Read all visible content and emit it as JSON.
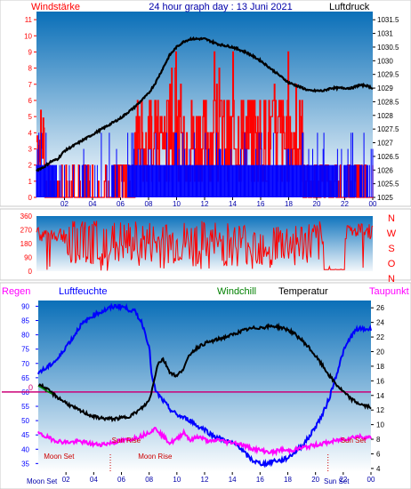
{
  "colors": {
    "bg_top": "#0a6fb8",
    "bg_bottom": "#ffffff",
    "wind": "#ff0000",
    "gust": "#0000ff",
    "pressure": "#000000",
    "humidity": "#0000ff",
    "temperature": "#000000",
    "dewpoint": "#ff00ff",
    "windchill": "#008000",
    "rain": "#ff00ff",
    "zero_line": "#cc0077",
    "moon": "#cc0000"
  },
  "chart_data": [
    {
      "id": "wind_pressure",
      "type": "line",
      "title": "24 hour graph day : 13 Juni 2021",
      "left_label": "Windstärke",
      "right_label": "Luftdruck",
      "y_left_ticks": [
        "0",
        "1",
        "2",
        "3",
        "4",
        "5",
        "6",
        "7",
        "8",
        "9",
        "10",
        "11"
      ],
      "y_right_ticks": [
        "1025",
        "1025.5",
        "1026",
        "1026.5",
        "1027",
        "1027.5",
        "1028",
        "1028.5",
        "1029",
        "1029.5",
        "1030",
        "1030.5",
        "1031",
        "1031.5"
      ],
      "x_ticks": [
        "02",
        "04",
        "06",
        "08",
        "10",
        "12",
        "14",
        "16",
        "18",
        "20",
        "22",
        "00"
      ],
      "ylim_left": [
        0,
        11.5
      ],
      "ylim_right": [
        1025,
        1031.8
      ],
      "pressure": {
        "x": [
          0,
          0.5,
          1,
          1.5,
          2,
          3,
          4,
          5,
          6,
          7,
          8,
          8.5,
          9,
          9.5,
          10,
          10.5,
          11,
          11.5,
          12,
          12.5,
          13,
          14,
          15,
          16,
          16.5,
          17,
          17.5,
          18,
          18.5,
          19,
          19.5,
          20,
          20.5,
          21,
          21.5,
          22,
          22.5,
          23,
          23.5,
          24
        ],
        "y": [
          1026.0,
          1026.1,
          1026.3,
          1026.4,
          1026.7,
          1027.0,
          1027.3,
          1027.6,
          1027.9,
          1028.3,
          1028.8,
          1029.2,
          1029.7,
          1030.2,
          1030.5,
          1030.7,
          1030.8,
          1030.8,
          1030.8,
          1030.7,
          1030.6,
          1030.5,
          1030.3,
          1030.0,
          1029.8,
          1029.6,
          1029.4,
          1029.2,
          1029.1,
          1029.0,
          1028.9,
          1028.9,
          1028.9,
          1029.0,
          1029.0,
          1029.0,
          1029.0,
          1029.1,
          1029.1,
          1029.0
        ]
      }
    },
    {
      "id": "wind_direction",
      "type": "line",
      "y_left_ticks": [
        "0",
        "90",
        "180",
        "270",
        "360"
      ],
      "direction_labels": [
        "N",
        "W",
        "S",
        "O",
        "N"
      ],
      "ylim": [
        0,
        360
      ]
    },
    {
      "id": "humidity_temperature",
      "type": "line",
      "legend": [
        "Regen",
        "Luftfeuchte",
        "Windchill",
        "Temperatur",
        "Taupunkt"
      ],
      "y_left_ticks": [
        "35",
        "40",
        "45",
        "50",
        "55",
        "60",
        "65",
        "70",
        "75",
        "80",
        "85",
        "90"
      ],
      "y_right_ticks": [
        "4",
        "6",
        "8",
        "10",
        "12",
        "14",
        "16",
        "18",
        "20",
        "22",
        "24",
        "26"
      ],
      "zero_label": "0",
      "x_ticks": [
        "02",
        "04",
        "06",
        "08",
        "10",
        "12",
        "14",
        "16",
        "18",
        "20",
        "22",
        "00"
      ],
      "ylim_left": [
        32,
        92
      ],
      "ylim_right": [
        3.5,
        27
      ],
      "humidity": {
        "x": [
          0,
          0.5,
          1,
          1.5,
          2,
          2.5,
          3,
          3.5,
          4,
          4.5,
          5,
          5.5,
          6,
          6.5,
          7,
          7.5,
          8,
          8.2,
          8.5,
          9,
          9.5,
          10,
          10.5,
          11,
          11.5,
          12,
          12.5,
          13,
          13.5,
          14,
          14.5,
          15,
          15.5,
          16,
          16.5,
          17,
          17.5,
          18,
          18.5,
          19,
          19.5,
          20,
          20.5,
          21,
          21.5,
          22,
          22.5,
          23,
          23.5,
          24
        ],
        "y": [
          67,
          68,
          70,
          72,
          76,
          79,
          83,
          85,
          87,
          88,
          89,
          90,
          90,
          89,
          88,
          84,
          76,
          65,
          60,
          57,
          54,
          52,
          51,
          50,
          48,
          47,
          45,
          44,
          43,
          42,
          41,
          38,
          36,
          35,
          35,
          36,
          36,
          37,
          39,
          41,
          44,
          48,
          52,
          58,
          66,
          74,
          79,
          82,
          82,
          82
        ]
      },
      "temperature": {
        "x": [
          0,
          0.5,
          1,
          1.5,
          2,
          2.5,
          3,
          3.5,
          4,
          4.5,
          5,
          5.5,
          6,
          6.5,
          7,
          7.5,
          8,
          8.3,
          8.6,
          9,
          9.5,
          10,
          10.5,
          11,
          11.5,
          12,
          12.5,
          13,
          13.5,
          14,
          14.5,
          15,
          15.5,
          16,
          16.5,
          17,
          17.5,
          18,
          18.5,
          19,
          19.5,
          20,
          20.5,
          21,
          21.5,
          22,
          22.5,
          23,
          23.5,
          24
        ],
        "y": [
          15.6,
          15.0,
          14.3,
          13.6,
          13.0,
          12.4,
          11.9,
          11.5,
          11.1,
          10.9,
          10.8,
          10.8,
          10.9,
          11.1,
          11.6,
          12.3,
          13.3,
          15.5,
          18.3,
          19.0,
          17.2,
          16.6,
          17.8,
          19.8,
          20.6,
          21.1,
          21.4,
          21.7,
          22.0,
          22.3,
          22.7,
          23.0,
          23.2,
          23.3,
          23.4,
          23.5,
          23.3,
          23.0,
          22.4,
          21.6,
          20.6,
          19.4,
          18.1,
          16.7,
          15.5,
          14.5,
          13.6,
          13.0,
          12.6,
          12.4
        ]
      },
      "dewpoint": {
        "x": [
          0,
          0.5,
          1,
          1.5,
          2,
          2.5,
          3,
          3.5,
          4,
          4.5,
          5,
          5.5,
          6,
          6.5,
          7,
          7.5,
          8,
          8.5,
          9,
          9.5,
          10,
          10.5,
          11,
          11.5,
          12,
          12.5,
          13,
          13.5,
          14,
          14.5,
          15,
          15.5,
          16,
          16.5,
          17,
          17.5,
          18,
          18.5,
          19,
          19.5,
          20,
          20.5,
          21,
          21.5,
          22,
          22.5,
          23,
          23.5,
          24
        ],
        "y": [
          8.8,
          8.4,
          8.0,
          7.7,
          7.6,
          7.6,
          7.7,
          7.5,
          7.3,
          7.3,
          7.4,
          7.6,
          7.8,
          7.9,
          8.2,
          8.5,
          9.0,
          9.5,
          8.4,
          7.5,
          8.0,
          9.0,
          7.8,
          8.4,
          8.0,
          7.6,
          8.0,
          7.6,
          7.6,
          7.4,
          7.0,
          6.7,
          6.5,
          6.3,
          6.2,
          6.6,
          6.4,
          6.6,
          6.8,
          7.0,
          7.2,
          7.4,
          7.6,
          7.8,
          8.0,
          8.2,
          8.4,
          8.3,
          8.2
        ]
      },
      "windchill": {
        "x": [
          0,
          0.3,
          0.6,
          1.0
        ],
        "y": [
          15.3,
          15.0,
          14.6,
          14.2
        ]
      },
      "annotations": [
        {
          "text": "Sun Rise",
          "x": 5.3,
          "y": 7.5
        },
        {
          "text": "Sun Set",
          "x": 21.8,
          "y": 7.5
        },
        {
          "text": "Moon Set",
          "x": 0.4,
          "y": 5.3
        },
        {
          "text": "Moon Rise",
          "x": 7.2,
          "y": 5.3
        },
        {
          "text": "Moon Set",
          "x": 0.0,
          "y": 3.8
        },
        {
          "text": "Sun Set",
          "x": 21.0,
          "y": 3.8
        }
      ]
    }
  ]
}
